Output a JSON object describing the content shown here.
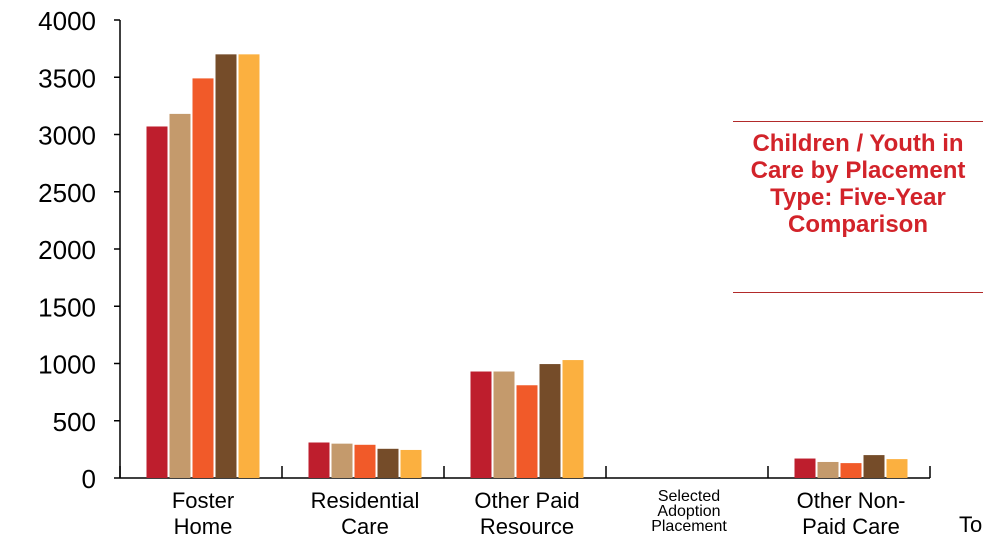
{
  "chart_data": {
    "type": "bar",
    "title": "Children / Youth in Care by Placement Type: Five-Year Comparison",
    "categories": [
      [
        "Foster",
        "Home"
      ],
      [
        "Residential",
        "Care"
      ],
      [
        "Other Paid",
        "Resource"
      ],
      [
        "Selected",
        "Adoption",
        "Placement"
      ],
      [
        "Other Non-",
        "Paid Care"
      ]
    ],
    "series": [
      {
        "color": "#be1e2d",
        "values": [
          3070,
          310,
          930,
          0,
          170
        ]
      },
      {
        "color": "#c49a6c",
        "values": [
          3180,
          300,
          930,
          0,
          140
        ]
      },
      {
        "color": "#f15a29",
        "values": [
          3490,
          290,
          810,
          0,
          130
        ]
      },
      {
        "color": "#754c29",
        "values": [
          3700,
          255,
          995,
          0,
          200
        ]
      },
      {
        "color": "#fbb040",
        "values": [
          3700,
          245,
          1030,
          0,
          165
        ]
      }
    ],
    "ylim": [
      0,
      4000
    ],
    "yticks": [
      0,
      500,
      1000,
      1500,
      2000,
      2500,
      3000,
      3500,
      4000
    ],
    "grid": false,
    "partial_label": "To"
  }
}
